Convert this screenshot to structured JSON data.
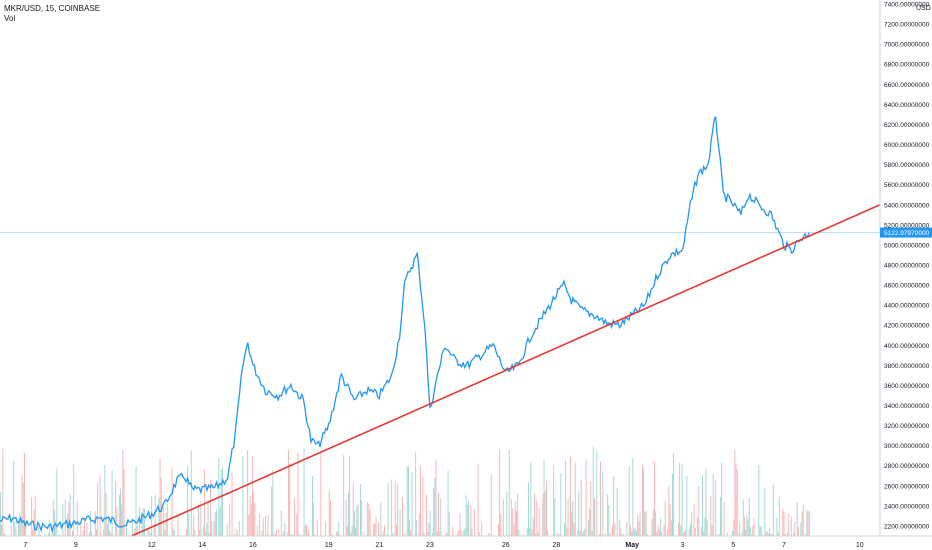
{
  "header": {
    "symbol": "MKR/USD, 15, COINBASE",
    "indicator": "Vol"
  },
  "axis": {
    "currency": "USD"
  },
  "current_price": {
    "value": 5122.9797,
    "label": "5122.97970000",
    "color": "#2196f3"
  },
  "colors": {
    "price_line": "#2196f3",
    "trend_line": "#e53935",
    "vol_up": "#26a69a",
    "vol_down": "#ef5350",
    "grid_border": "#d1d4dc"
  },
  "chart_data": {
    "type": "line",
    "title": "MKR/USD, 15, COINBASE",
    "ylim": [
      2100,
      7400
    ],
    "y_ticks": [
      "2200.00000000",
      "2400.00000000",
      "2600.00000000",
      "2800.00000000",
      "3000.00000000",
      "3200.00000000",
      "3400.00000000",
      "3600.00000000",
      "3800.00000000",
      "4000.00000000",
      "4200.00000000",
      "4400.00000000",
      "4600.00000000",
      "4800.00000000",
      "5000.00000000",
      "5200.00000000",
      "5400.00000000",
      "5600.00000000",
      "5800.00000000",
      "6000.00000000",
      "6200.00000000",
      "6400.00000000",
      "6600.00000000",
      "6800.00000000",
      "7000.00000000",
      "7200.00000000",
      "7400.00000000"
    ],
    "x_ticks": [
      {
        "label": "7",
        "day": 7
      },
      {
        "label": "9",
        "day": 9
      },
      {
        "label": "12",
        "day": 12
      },
      {
        "label": "14",
        "day": 14
      },
      {
        "label": "16",
        "day": 16
      },
      {
        "label": "19",
        "day": 19
      },
      {
        "label": "21",
        "day": 21
      },
      {
        "label": "23",
        "day": 23
      },
      {
        "label": "26",
        "day": 26
      },
      {
        "label": "28",
        "day": 28
      },
      {
        "label": "May",
        "day": 31,
        "bold": true
      },
      {
        "label": "3",
        "day": 33
      },
      {
        "label": "5",
        "day": 35
      },
      {
        "label": "7",
        "day": 37
      },
      {
        "label": "10",
        "day": 40
      }
    ],
    "series": [
      {
        "x": [
          6,
          6.5,
          7,
          7.5,
          8,
          8.5,
          9,
          9.5,
          10,
          10.5,
          11,
          11.5,
          12,
          12.5,
          13,
          13.3,
          13.6,
          14,
          14.5,
          15,
          15.3,
          15.6,
          15.8,
          16,
          16.5,
          17,
          17.5,
          18,
          18.3,
          18.6,
          19,
          19.5,
          20,
          20.5,
          21,
          21.5,
          21.8,
          22,
          22.2,
          22.5,
          22.8,
          23,
          23.3,
          23.6,
          24,
          24.5,
          25,
          25.5,
          26,
          26.5,
          27,
          27.5,
          28,
          28.3,
          28.6,
          29,
          29.5,
          30,
          30.5,
          31,
          31.5,
          32,
          32.5,
          33,
          33.3,
          33.6,
          34,
          34.3,
          34.6,
          35,
          35.3,
          35.6,
          36,
          36.5,
          37,
          37.3,
          37.6,
          38
        ],
        "y": [
          2250,
          2280,
          2220,
          2200,
          2190,
          2210,
          2230,
          2260,
          2280,
          2250,
          2210,
          2260,
          2320,
          2400,
          2650,
          2700,
          2560,
          2560,
          2580,
          2680,
          3100,
          3800,
          4030,
          3800,
          3550,
          3500,
          3600,
          3450,
          3050,
          3000,
          3200,
          3700,
          3450,
          3550,
          3500,
          3700,
          4100,
          4600,
          4750,
          4900,
          4200,
          3350,
          3700,
          4000,
          3850,
          3800,
          3900,
          4000,
          3720,
          3800,
          4100,
          4300,
          4500,
          4600,
          4450,
          4350,
          4300,
          4220,
          4200,
          4300,
          4400,
          4700,
          4900,
          4950,
          5400,
          5700,
          5800,
          6300,
          5500,
          5400,
          5300,
          5500,
          5400,
          5300,
          5000,
          4950,
          5050,
          5122.98
        ]
      }
    ],
    "trend_line": {
      "x": [
        11.2,
        40.8
      ],
      "y": [
        2100,
        5400
      ]
    },
    "volume": {
      "max_height_fraction": 0.17
    },
    "xlim": [
      6,
      40.8
    ]
  }
}
